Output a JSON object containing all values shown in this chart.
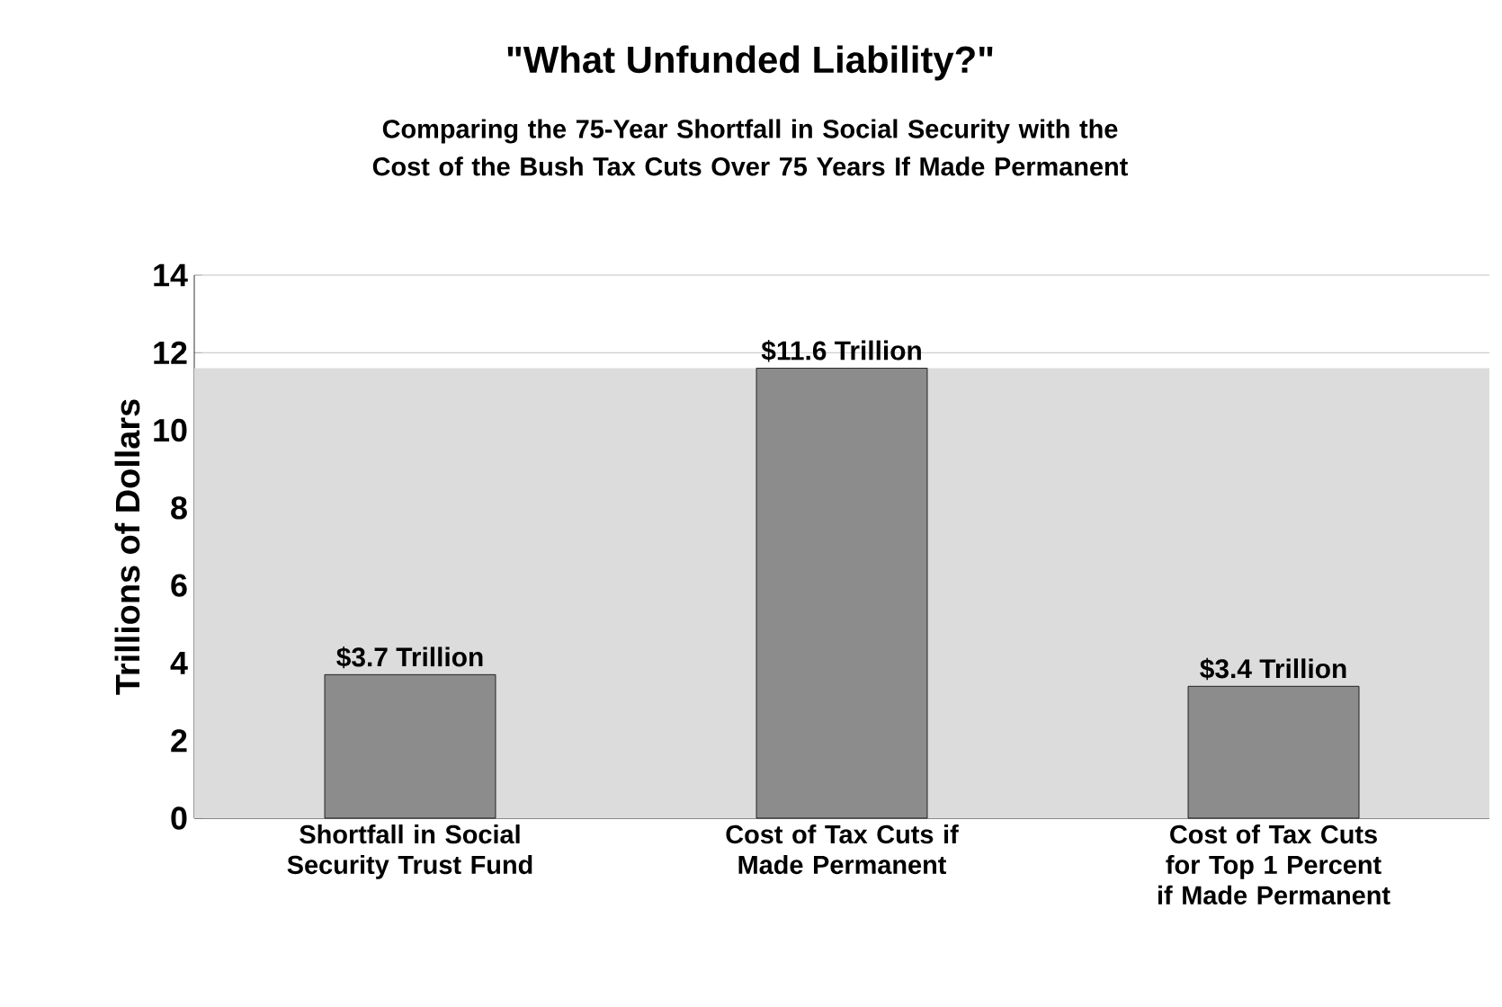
{
  "chart_data": {
    "type": "bar",
    "title": "\"What Unfunded Liability?\"",
    "subtitle": "Comparing the 75-Year Shortfall in Social Security with the Cost of the Bush Tax Cuts Over 75 Years If Made Permanent",
    "ylabel": "Trillions of Dollars",
    "categories": [
      "Shortfall in Social Security Trust Fund",
      "Cost of Tax Cuts if Made Permanent",
      "Cost of Tax Cuts for Top 1 Percent if Made Permanent"
    ],
    "values": [
      3.7,
      11.6,
      3.4
    ],
    "value_labels": [
      "$3.7 Trillion",
      "$11.6 Trillion",
      "$3.4 Trillion"
    ],
    "color": "#8c8c8c",
    "ylim": [
      0,
      14
    ],
    "yticks": [
      0,
      2,
      4,
      6,
      8,
      10,
      12,
      14
    ],
    "grid": "y",
    "bands": [
      {
        "axis": "y",
        "from": 0,
        "to": 11.6,
        "color": "#dcdcdc"
      }
    ]
  }
}
